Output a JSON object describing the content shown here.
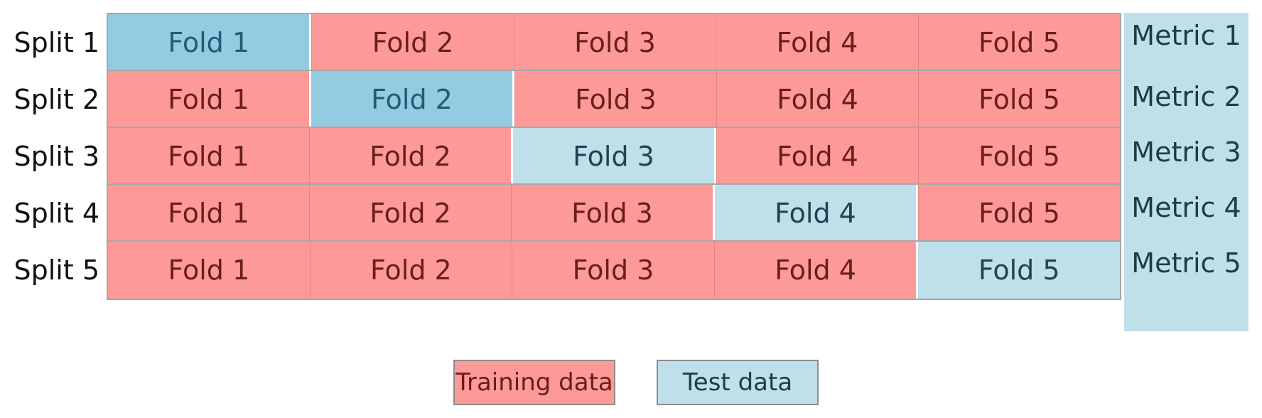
{
  "splits": [
    {
      "label": "Split 1",
      "test_index": 0,
      "metric": "Metric 1"
    },
    {
      "label": "Split 2",
      "test_index": 1,
      "metric": "Metric 2"
    },
    {
      "label": "Split 3",
      "test_index": 2,
      "metric": "Metric 3"
    },
    {
      "label": "Split 4",
      "test_index": 3,
      "metric": "Metric 4"
    },
    {
      "label": "Split 5",
      "test_index": 4,
      "metric": "Metric 5"
    }
  ],
  "folds": [
    "Fold 1",
    "Fold 2",
    "Fold 3",
    "Fold 4",
    "Fold 5"
  ],
  "legend": {
    "training": "Training data",
    "test": "Test data"
  },
  "colors": {
    "training": "#fd9a98",
    "test": "#bfe0ea",
    "test_emphasis": "#93cbe0",
    "metric_column": "#bfe0ea"
  }
}
